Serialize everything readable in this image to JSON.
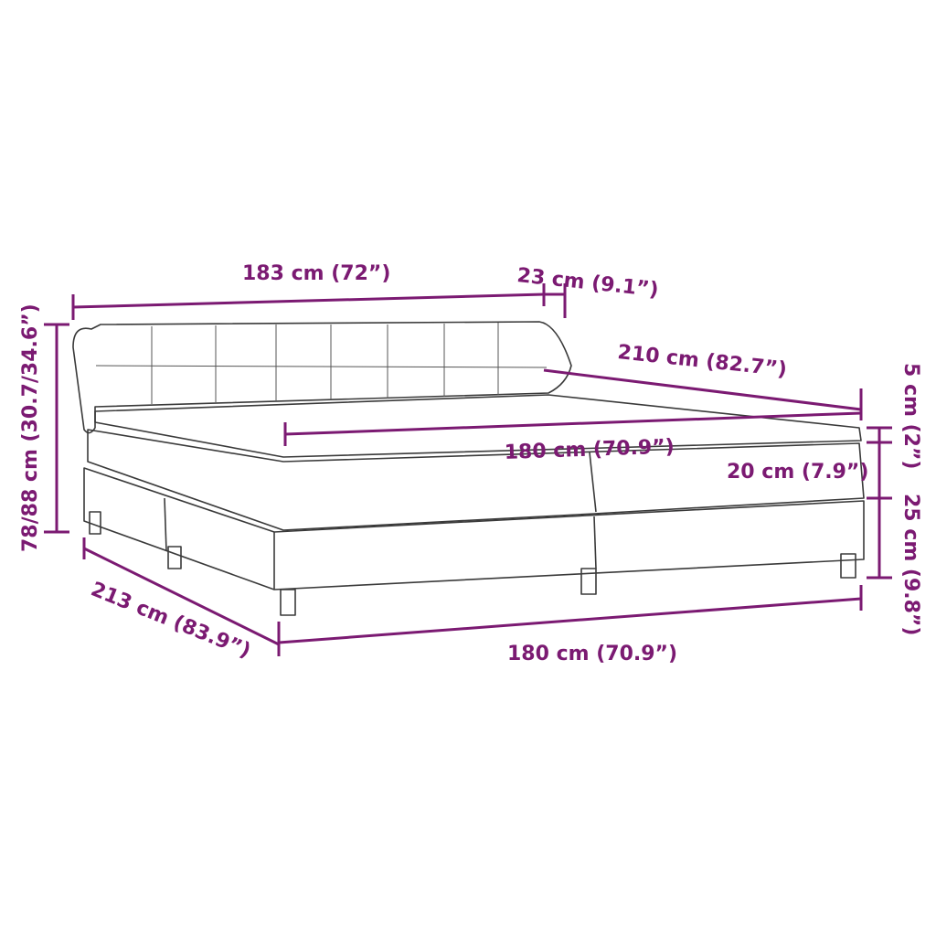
{
  "accent_color": "#7b1a72",
  "dimensions": {
    "headboard_width": "183 cm (72”)",
    "wing_depth": "23 cm (9.1”)",
    "length_top": "210 cm (82.7”)",
    "mattress_width": "180 cm (70.9”)",
    "topper_height": "5 cm (2”)",
    "mattress_height": "20 cm (7.9”)",
    "base_height": "25 cm (9.8”)",
    "total_height": "78/88 cm (30.7/34.6”)",
    "total_length": "213 cm (83.9”)",
    "base_width": "180 cm (70.9”)"
  }
}
